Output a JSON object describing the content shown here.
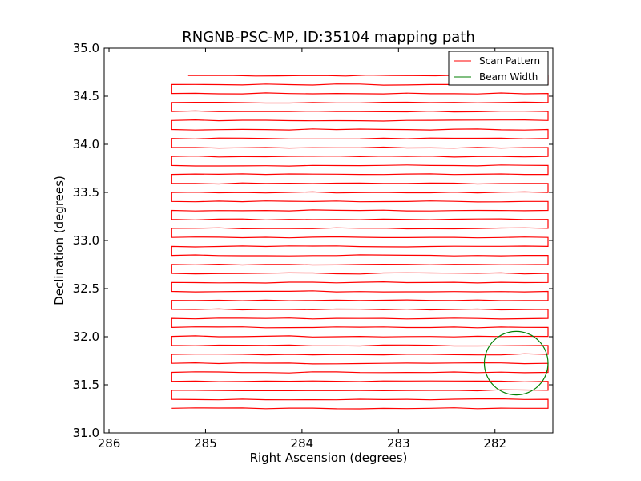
{
  "chart_data": {
    "type": "line",
    "title": "RNGNB-PSC-MP, ID:35104 mapping path",
    "xlabel": "Right Ascension (degrees)",
    "ylabel": "Declination (degrees)",
    "xlim": [
      286.05,
      281.4
    ],
    "ylim": [
      31.0,
      35.0
    ],
    "x_inverted": true,
    "xticks": [
      286,
      285,
      284,
      283,
      282
    ],
    "xtick_labels": [
      "286",
      "285",
      "284",
      "283",
      "282"
    ],
    "yticks": [
      31.0,
      31.5,
      32.0,
      32.5,
      33.0,
      33.5,
      34.0,
      34.5,
      35.0
    ],
    "ytick_labels": [
      "31.0",
      "31.5",
      "32.0",
      "32.5",
      "33.0",
      "33.5",
      "34.0",
      "34.5",
      "35.0"
    ],
    "grid": false,
    "legend_position": "top-right",
    "series": [
      {
        "name": "Scan Pattern",
        "color": "#ff0000",
        "pattern": "raster",
        "ra_range": [
          285.35,
          281.45
        ],
        "dec_start": 34.715,
        "dec_end": 31.34,
        "row_count": 38,
        "row_spacing": 0.0935
      },
      {
        "name": "Beam Width",
        "color": "#007f00",
        "shape": "circle",
        "center_ra": 281.78,
        "center_dec": 31.725,
        "radius_deg": 0.33
      }
    ]
  }
}
